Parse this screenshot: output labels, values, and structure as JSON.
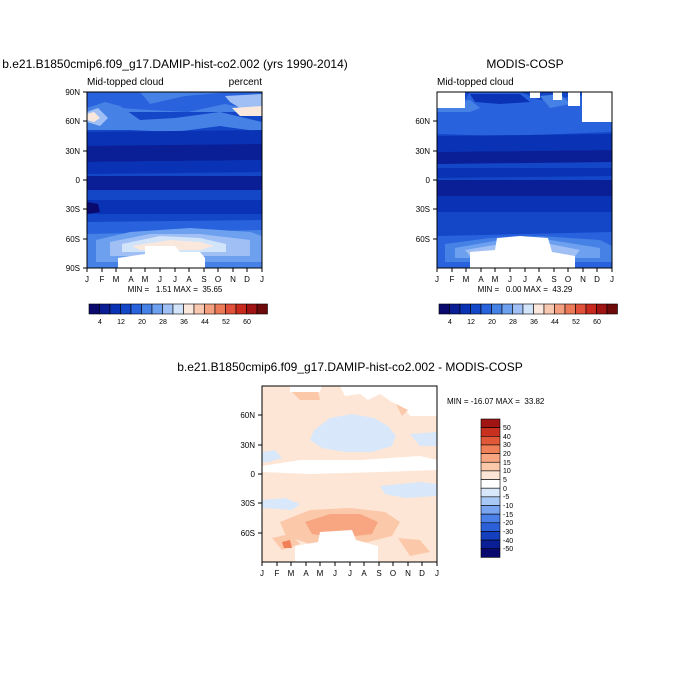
{
  "chart_data": [
    {
      "type": "heatmap",
      "title": "b.e21.B1850cmip6.f09_g17.DAMIP-hist-co2.002 (yrs 1990-2014)",
      "subtitle_left": "Mid-topped cloud",
      "subtitle_right": "percent",
      "x_ticks": [
        "J",
        "F",
        "M",
        "A",
        "M",
        "J",
        "J",
        "A",
        "S",
        "O",
        "N",
        "D",
        "J"
      ],
      "y_ticks": [
        "90N",
        "60N",
        "30N",
        "0",
        "30S",
        "60S",
        "90S"
      ],
      "y_values": [
        90,
        60,
        30,
        0,
        -30,
        -60,
        -90
      ],
      "ylim": [
        -90,
        90
      ],
      "stats": "MIN =   1.51 MAX =  35.65",
      "colorbar_labels": [
        "4",
        "12",
        "20",
        "28",
        "36",
        "44",
        "52",
        "60"
      ]
    },
    {
      "type": "heatmap",
      "title": "MODIS-COSP",
      "subtitle_left": "Mid-topped cloud",
      "x_ticks": [
        "J",
        "F",
        "M",
        "A",
        "M",
        "J",
        "J",
        "A",
        "S",
        "O",
        "N",
        "D",
        "J"
      ],
      "y_ticks": [
        "60N",
        "30N",
        "0",
        "30S",
        "60S"
      ],
      "y_values": [
        60,
        30,
        0,
        -30,
        -60
      ],
      "ylim": [
        -90,
        90
      ],
      "stats": "MIN =   0.00 MAX =  43.29",
      "colorbar_labels": [
        "4",
        "12",
        "20",
        "28",
        "36",
        "44",
        "52",
        "60"
      ]
    },
    {
      "type": "heatmap",
      "title": "b.e21.B1850cmip6.f09_g17.DAMIP-hist-co2.002 - MODIS-COSP",
      "x_ticks": [
        "J",
        "F",
        "M",
        "A",
        "M",
        "J",
        "J",
        "A",
        "S",
        "O",
        "N",
        "D",
        "J"
      ],
      "y_ticks": [
        "60N",
        "30N",
        "0",
        "30S",
        "60S"
      ],
      "y_values": [
        60,
        30,
        0,
        -30,
        -60
      ],
      "ylim": [
        -90,
        90
      ],
      "stats": "MIN = -16.07 MAX =  33.82",
      "colorbar_labels": [
        "50",
        "40",
        "30",
        "20",
        "15",
        "10",
        "5",
        "0",
        "-5",
        "-10",
        "-15",
        "-20",
        "-30",
        "-40",
        "-50"
      ]
    }
  ],
  "colors": {
    "abs_scale": [
      "#0a0a6e",
      "#0a1e96",
      "#0a32b4",
      "#1446c8",
      "#2862dc",
      "#4682e6",
      "#6ea0f0",
      "#a0c0f5",
      "#d2e4fa",
      "#fbe8dc",
      "#f8c8b0",
      "#f4a080",
      "#ec7a58",
      "#e0503a",
      "#c82a1e",
      "#a01414",
      "#6e0a0a"
    ],
    "diff_scale": [
      "#0a0a6e",
      "#0a1e96",
      "#1440c0",
      "#2c60d8",
      "#4a80e8",
      "#78a4f0",
      "#a8c8f5",
      "#d8e8fa",
      "#ffffff",
      "#fde6d6",
      "#fbc8aa",
      "#f8a682",
      "#f08058",
      "#e05838",
      "#c83020",
      "#a01414"
    ]
  }
}
